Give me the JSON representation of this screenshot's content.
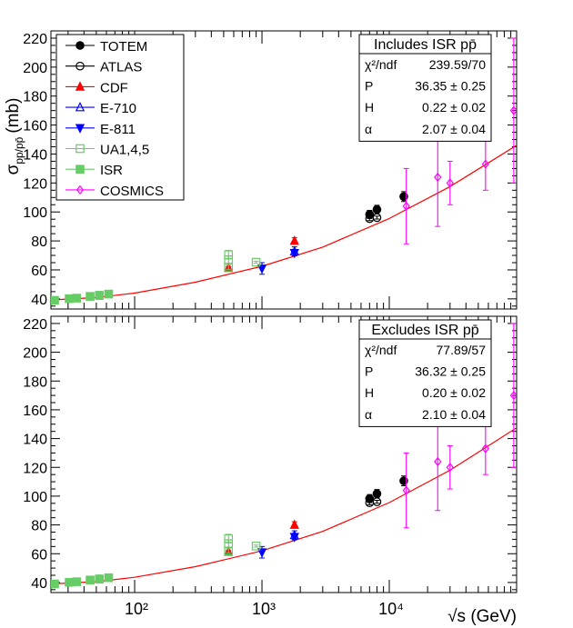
{
  "figure": {
    "ylabel_main": "σ",
    "ylabel_sub": "pp/pp̄",
    "ylabel_unit": "(mb)",
    "xlabel": "√s (GeV)"
  },
  "colors": {
    "fit": "#ff0000",
    "totem": "#000000",
    "atlas": "#000000",
    "cdf": "#ff0000",
    "e710": "#0000ff",
    "e811": "#0000ff",
    "ua1": "#66cc66",
    "isr": "#66cc66",
    "cosmics": "#ff00ff"
  },
  "chart_data": [
    {
      "type": "scatter",
      "title": "",
      "xlabel": "√s (GeV)",
      "ylabel": "σ pp/pp̄ (mb)",
      "xscale": "log",
      "xlim": [
        22,
        100000
      ],
      "ylim": [
        33,
        225
      ],
      "xticks": [
        "10²",
        "10³",
        "10⁴"
      ],
      "yticks": [
        40,
        60,
        80,
        100,
        120,
        140,
        160,
        180,
        200,
        220
      ],
      "grid": false,
      "legend_position": "top-left",
      "legend": [
        "TOTEM",
        "ATLAS",
        "CDF",
        "E-710",
        "E-811",
        "UA1,4,5",
        "ISR",
        "COSMICS"
      ],
      "series": [
        {
          "name": "TOTEM",
          "marker": "filled-circle",
          "x": [
            7000,
            8000,
            13000
          ],
          "y": [
            98.3,
            101.7,
            110.6
          ],
          "err": [
            2.8,
            2.9,
            3.4
          ]
        },
        {
          "name": "ATLAS",
          "marker": "open-circle",
          "x": [
            7000,
            8000
          ],
          "y": [
            95.4,
            96.1
          ],
          "err": [
            1.4,
            1.0
          ]
        },
        {
          "name": "CDF",
          "marker": "filled-triangle-up",
          "x": [
            546,
            1800
          ],
          "y": [
            61.3,
            80.0
          ],
          "err": [
            0.9,
            2.2
          ]
        },
        {
          "name": "E-710",
          "marker": "open-triangle-up",
          "x": [
            1800
          ],
          "y": [
            72.8
          ],
          "err": [
            3.1
          ]
        },
        {
          "name": "E-811",
          "marker": "filled-triangle-down",
          "x": [
            1000,
            1800
          ],
          "y": [
            61.0,
            71.7
          ],
          "err": [
            4.0,
            2.0
          ]
        },
        {
          "name": "UA1,4,5",
          "marker": "open-square",
          "x": [
            546,
            546,
            546,
            900
          ],
          "y": [
            61.9,
            67.0,
            70.5,
            65.3
          ],
          "err": [
            1.5,
            2.5,
            3.0,
            0.7
          ]
        },
        {
          "name": "ISR",
          "marker": "filled-square",
          "x": [
            23.5,
            30.6,
            35,
            44.7,
            52.8,
            62.5
          ],
          "y": [
            39.0,
            40.1,
            40.5,
            41.7,
            42.4,
            43.3
          ],
          "err": [
            0.8,
            2.0,
            1.0,
            1.0,
            2.8,
            2.5
          ]
        },
        {
          "name": "COSMICS",
          "marker": "open-diamond",
          "x": [
            13600,
            24000,
            30000,
            57000,
            95000
          ],
          "y": [
            104.0,
            124.0,
            120.0,
            133.0,
            170.0
          ],
          "err": [
            26.0,
            34.0,
            15.0,
            18.0,
            50.0
          ]
        }
      ],
      "fit": {
        "name": "fit",
        "x": [
          22,
          50,
          100,
          300,
          1000,
          3000,
          10000,
          30000,
          100000
        ],
        "y": [
          39.2,
          40.9,
          44.0,
          51.5,
          62.5,
          75.7,
          95.5,
          117.5,
          146.0
        ]
      },
      "fit_box": {
        "title": "Includes ISR pp̄",
        "rows": [
          {
            "label": "χ²/ndf",
            "value": "239.59/70"
          },
          {
            "label": "P",
            "value": "36.35 ± 0.25"
          },
          {
            "label": "H",
            "value": "0.22 ± 0.02"
          },
          {
            "label": "α",
            "value": "2.07 ± 0.04"
          }
        ]
      }
    },
    {
      "type": "scatter",
      "title": "",
      "xlabel": "√s (GeV)",
      "ylabel": "σ pp/pp̄ (mb)",
      "xscale": "log",
      "xlim": [
        22,
        100000
      ],
      "ylim": [
        33,
        225
      ],
      "xticks": [
        "10²",
        "10³",
        "10⁴"
      ],
      "yticks": [
        40,
        60,
        80,
        100,
        120,
        140,
        160,
        180,
        200,
        220
      ],
      "grid": false,
      "legend_position": "none",
      "series": [
        {
          "name": "TOTEM",
          "marker": "filled-circle",
          "x": [
            7000,
            8000,
            13000
          ],
          "y": [
            98.3,
            101.7,
            110.6
          ],
          "err": [
            2.8,
            2.9,
            3.4
          ]
        },
        {
          "name": "ATLAS",
          "marker": "open-circle",
          "x": [
            7000,
            8000
          ],
          "y": [
            95.4,
            96.1
          ],
          "err": [
            1.4,
            1.0
          ]
        },
        {
          "name": "CDF",
          "marker": "filled-triangle-up",
          "x": [
            546,
            1800
          ],
          "y": [
            61.3,
            80.0
          ],
          "err": [
            0.9,
            2.2
          ]
        },
        {
          "name": "E-710",
          "marker": "open-triangle-up",
          "x": [
            1800
          ],
          "y": [
            72.8
          ],
          "err": [
            3.1
          ]
        },
        {
          "name": "E-811",
          "marker": "filled-triangle-down",
          "x": [
            1000,
            1800
          ],
          "y": [
            61.0,
            71.7
          ],
          "err": [
            4.0,
            2.0
          ]
        },
        {
          "name": "UA1,4,5",
          "marker": "open-square",
          "x": [
            546,
            546,
            546,
            900
          ],
          "y": [
            61.9,
            67.0,
            70.5,
            65.3
          ],
          "err": [
            1.5,
            2.5,
            3.0,
            0.7
          ]
        },
        {
          "name": "ISR",
          "marker": "filled-square",
          "x": [
            23.5,
            30.6,
            35,
            44.7,
            52.8,
            62.5
          ],
          "y": [
            39.0,
            40.1,
            40.5,
            41.7,
            42.4,
            43.3
          ],
          "err": [
            0.8,
            2.0,
            1.0,
            1.0,
            2.8,
            2.5
          ]
        },
        {
          "name": "COSMICS",
          "marker": "open-diamond",
          "x": [
            13600,
            24000,
            30000,
            57000,
            95000
          ],
          "y": [
            104.0,
            124.0,
            120.0,
            133.0,
            170.0
          ],
          "err": [
            26.0,
            34.0,
            15.0,
            18.0,
            50.0
          ]
        }
      ],
      "fit": {
        "name": "fit",
        "x": [
          22,
          50,
          100,
          300,
          1000,
          3000,
          10000,
          30000,
          100000
        ],
        "y": [
          39.0,
          40.6,
          43.6,
          51.0,
          62.0,
          75.5,
          95.5,
          118.0,
          147.5
        ]
      },
      "fit_box": {
        "title": "Excludes ISR pp̄",
        "rows": [
          {
            "label": "χ²/ndf",
            "value": "77.89/57"
          },
          {
            "label": "P",
            "value": "36.32 ± 0.25"
          },
          {
            "label": "H",
            "value": "0.20 ± 0.02"
          },
          {
            "label": "α",
            "value": "2.10 ± 0.04"
          }
        ]
      }
    }
  ]
}
